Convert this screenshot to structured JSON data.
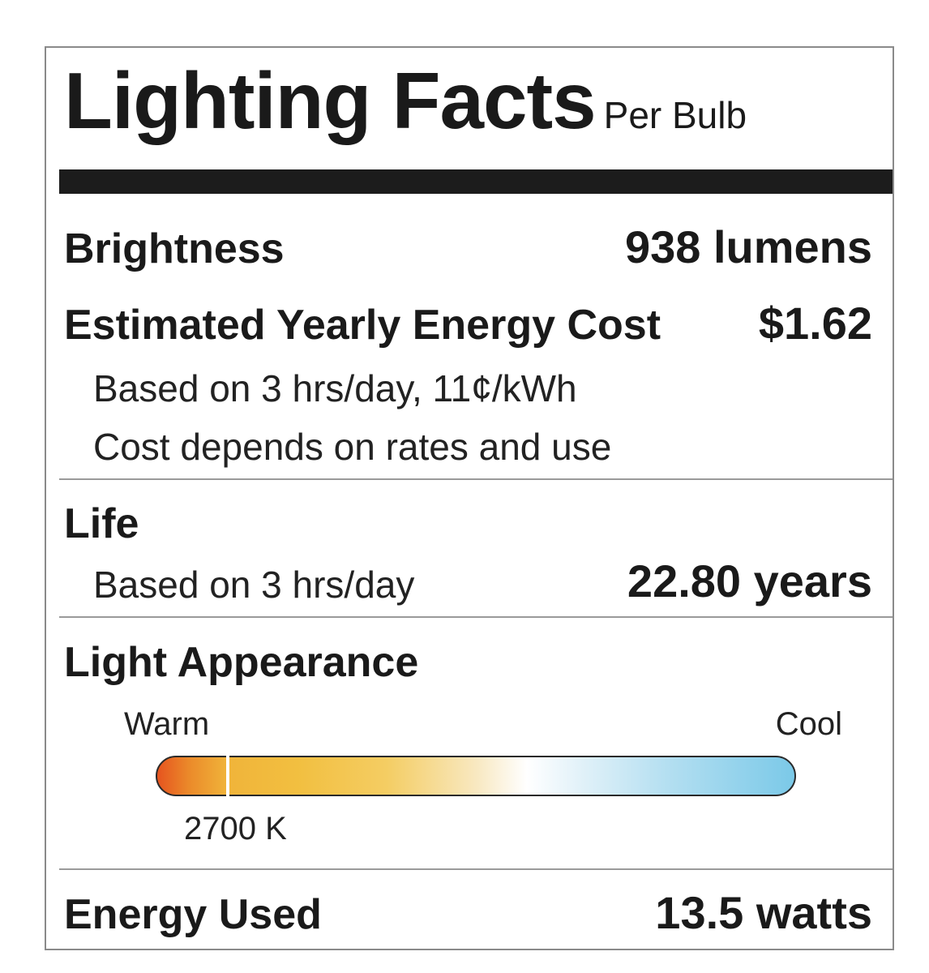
{
  "title": "Lighting Facts",
  "subtitle": "Per Bulb",
  "brightness": {
    "label": "Brightness",
    "value": "938 lumens"
  },
  "energy_cost": {
    "label": "Estimated Yearly Energy Cost",
    "value": "$1.62",
    "note1": "Based on 3 hrs/day, 11¢/kWh",
    "note2": "Cost depends on rates and use"
  },
  "life": {
    "label": "Life",
    "note": "Based on 3 hrs/day",
    "value": "22.80 years"
  },
  "light_appearance": {
    "label": "Light Appearance",
    "warm_label": "Warm",
    "cool_label": "Cool",
    "value_label": "2700 K",
    "position_fraction": 0.11,
    "colors": {
      "warm_end": "#e6541f",
      "middle": "#ffffff",
      "cool_end": "#7bc9e8"
    }
  },
  "energy_used": {
    "label": "Energy Used",
    "value": "13.5 watts"
  }
}
